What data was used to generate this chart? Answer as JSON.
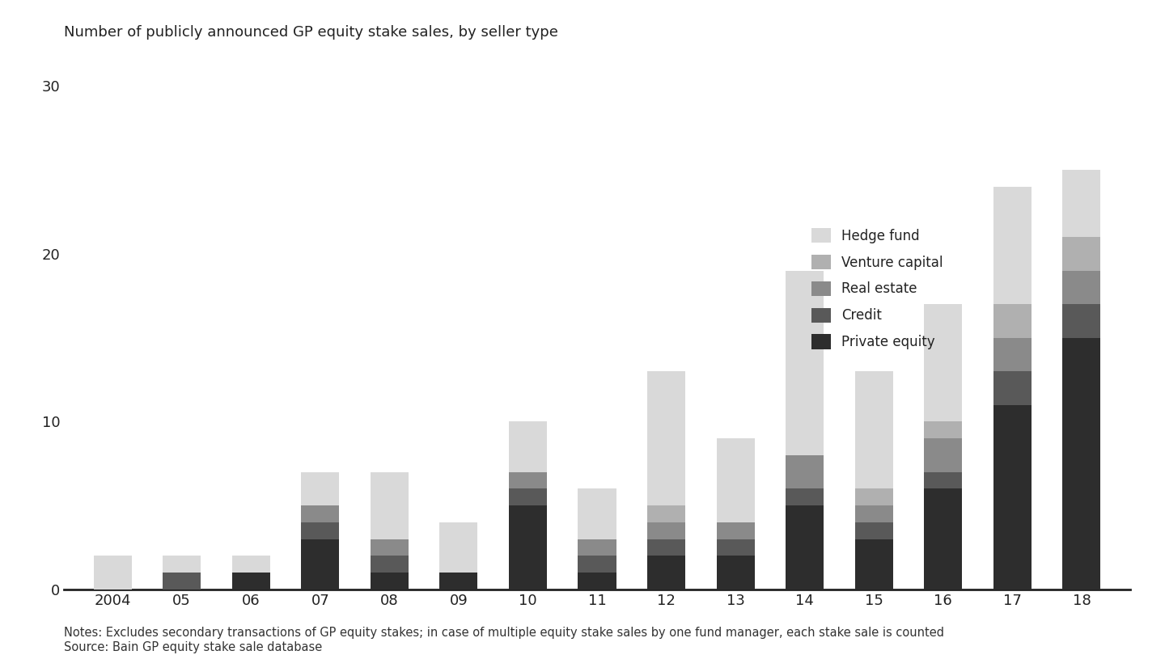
{
  "title": "Number of publicly announced GP equity stake sales, by seller type",
  "years": [
    "2004",
    "05",
    "06",
    "07",
    "08",
    "09",
    "10",
    "11",
    "12",
    "13",
    "14",
    "15",
    "16",
    "17",
    "18"
  ],
  "segments": {
    "Private equity": [
      0,
      0,
      1,
      3,
      1,
      1,
      5,
      1,
      2,
      2,
      5,
      3,
      6,
      11,
      15
    ],
    "Credit": [
      0,
      1,
      0,
      1,
      1,
      0,
      1,
      1,
      1,
      1,
      1,
      1,
      1,
      2,
      2
    ],
    "Real estate": [
      0,
      0,
      0,
      1,
      1,
      0,
      1,
      1,
      1,
      1,
      2,
      1,
      2,
      2,
      2
    ],
    "Venture capital": [
      0,
      0,
      0,
      0,
      0,
      0,
      0,
      0,
      1,
      0,
      0,
      1,
      1,
      2,
      2
    ],
    "Hedge fund": [
      2,
      1,
      1,
      2,
      4,
      3,
      3,
      3,
      8,
      5,
      11,
      7,
      7,
      7,
      4
    ]
  },
  "colors": {
    "Private equity": "#2d2d2d",
    "Credit": "#595959",
    "Real estate": "#8a8a8a",
    "Venture capital": "#b0b0b0",
    "Hedge fund": "#d9d9d9"
  },
  "ylim": [
    0,
    32
  ],
  "yticks": [
    0,
    10,
    20,
    30
  ],
  "notes": "Notes: Excludes secondary transactions of GP equity stakes; in case of multiple equity stake sales by one fund manager, each stake sale is counted",
  "source": "Source: Bain GP equity stake sale database",
  "background_color": "#ffffff",
  "title_fontsize": 13,
  "legend_fontsize": 12,
  "tick_fontsize": 13,
  "note_fontsize": 10.5,
  "bar_width": 0.55
}
